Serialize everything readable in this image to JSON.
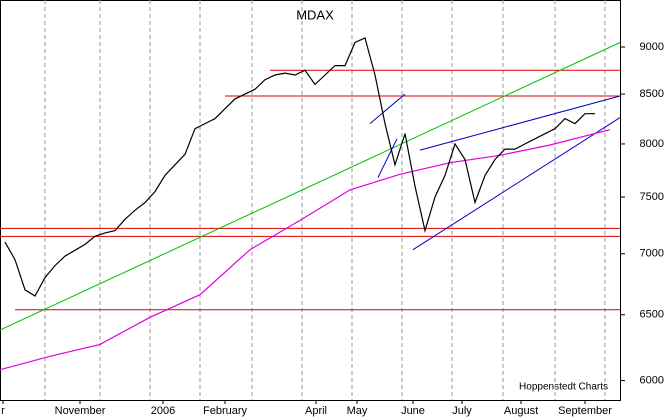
{
  "chart_data": {
    "type": "line",
    "title": "MDAX",
    "annotation": "Hoppenstedt Charts",
    "log_y": true,
    "xlim": [
      0,
      62
    ],
    "ylim": [
      5860,
      9530
    ],
    "yticks": [
      6000,
      6500,
      7000,
      7500,
      8000,
      8500,
      9000
    ],
    "xticks": [
      {
        "value": 0.3,
        "label": "r"
      },
      {
        "value": 8,
        "label": "November"
      },
      {
        "value": 16.3,
        "label": "2006"
      },
      {
        "value": 22.5,
        "label": "February"
      },
      {
        "value": 31.6,
        "label": "April"
      },
      {
        "value": 35.7,
        "label": "May"
      },
      {
        "value": 41.3,
        "label": "June"
      },
      {
        "value": 46.2,
        "label": "July"
      },
      {
        "value": 52.1,
        "label": "August"
      },
      {
        "value": 58.5,
        "label": "September"
      }
    ],
    "xgrid": [
      4.5,
      10,
      15,
      20,
      25.2,
      30.2,
      35.2,
      40.2,
      45.2,
      50.3,
      55.5,
      60.5
    ],
    "series": [
      {
        "color": "#000000",
        "x": [
          0.5,
          1.5,
          2.5,
          3.5,
          4.5,
          5.5,
          6.5,
          7.5,
          8.5,
          9.5,
          10.5,
          11.5,
          12.5,
          13.5,
          14.5,
          15.5,
          16.5,
          17.5,
          18.5,
          19.5,
          20.5,
          21.5,
          22.5,
          23.5,
          24.5,
          25.5,
          26.5,
          27.5,
          28.5,
          29.5,
          30.5,
          31.5,
          32.5,
          33.5,
          34.5,
          35.5,
          36.5,
          37.5,
          38.5,
          39.5,
          40.5,
          41.5,
          42.5,
          43.5,
          44.5,
          45.5,
          46.5,
          47.5,
          48.5,
          49.5,
          50.5,
          51.5,
          52.5,
          53.5,
          54.5,
          55.5,
          56.5,
          57.5,
          58.5,
          59.5
        ],
        "values": [
          7100,
          6950,
          6700,
          6650,
          6800,
          6900,
          6980,
          7030,
          7080,
          7150,
          7180,
          7200,
          7300,
          7380,
          7450,
          7550,
          7700,
          7800,
          7900,
          8150,
          8200,
          8250,
          8350,
          8450,
          8500,
          8550,
          8650,
          8700,
          8720,
          8700,
          8750,
          8600,
          8700,
          8800,
          8800,
          9050,
          9100,
          8700,
          8200,
          7800,
          8100,
          7600,
          7200,
          7500,
          7700,
          8000,
          7850,
          7450,
          7700,
          7850,
          7950,
          7950,
          8000,
          8050,
          8100,
          8150,
          8250,
          8200,
          8300,
          8300
        ]
      }
    ],
    "moving_average": {
      "color": "#e000e0",
      "x": [
        0,
        5,
        10,
        15,
        20,
        25,
        30,
        35,
        40,
        45,
        50,
        55,
        61
      ],
      "values": [
        6080,
        6180,
        6270,
        6480,
        6660,
        7035,
        7290,
        7565,
        7710,
        7820,
        7890,
        7990,
        8140
      ]
    },
    "hlines": {
      "color": "#e00000",
      "values": [
        8750,
        8480,
        7220,
        7150,
        6540
      ],
      "from": [
        27,
        22.5,
        0,
        0,
        1.5
      ]
    },
    "trend_lines": [
      {
        "color": "#00c000",
        "x": [
          0,
          62
        ],
        "values": [
          6380,
          9050
        ]
      },
      {
        "color": "#0000c0",
        "x": [
          42,
          62
        ],
        "values": [
          7940,
          8480
        ]
      },
      {
        "color": "#0000c0",
        "x": [
          41.3,
          62
        ],
        "values": [
          7035,
          8260
        ]
      },
      {
        "color": "#0000c0",
        "x": [
          37,
          40.5
        ],
        "values": [
          8200,
          8500
        ]
      },
      {
        "color": "#0000c0",
        "x": [
          37.8,
          39.7
        ],
        "values": [
          7680,
          8050
        ]
      }
    ]
  }
}
